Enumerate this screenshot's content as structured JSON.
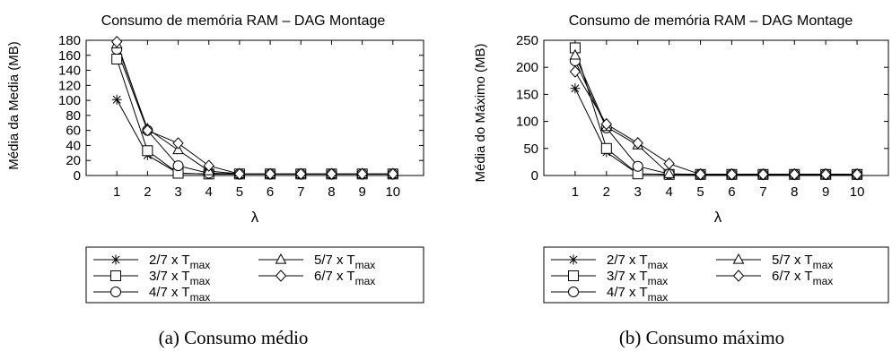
{
  "chart_data": [
    {
      "type": "line",
      "title": "Consumo de memória RAM – DAG Montage",
      "xlabel": "λ",
      "ylabel": "Média da Media (MB)",
      "caption": "(a) Consumo médio",
      "x": [
        1,
        2,
        3,
        4,
        5,
        6,
        7,
        8,
        9,
        10
      ],
      "xlim": [
        0,
        11
      ],
      "ylim": [
        0,
        180
      ],
      "yticks": [
        0,
        20,
        40,
        60,
        80,
        100,
        120,
        140,
        160,
        180
      ],
      "grid": false,
      "legend_position": "below",
      "series": [
        {
          "name": "2/7 x T",
          "sub": "max",
          "marker": "star",
          "values": [
            101,
            27,
            3,
            2,
            2,
            2,
            2,
            2,
            2,
            2
          ]
        },
        {
          "name": "3/7 x T",
          "sub": "max",
          "marker": "square",
          "values": [
            155,
            33,
            3,
            2,
            2,
            2,
            2,
            2,
            2,
            2
          ]
        },
        {
          "name": "4/7 x T",
          "sub": "max",
          "marker": "circle",
          "values": [
            168,
            60,
            13,
            3,
            2,
            2,
            2,
            2,
            2,
            2
          ]
        },
        {
          "name": "5/7 x T",
          "sub": "max",
          "marker": "triangle",
          "values": [
            175,
            62,
            34,
            6,
            2,
            2,
            2,
            2,
            2,
            2
          ]
        },
        {
          "name": "6/7 x T",
          "sub": "max",
          "marker": "diamond",
          "values": [
            178,
            60,
            43,
            13,
            2,
            2,
            2,
            2,
            2,
            2
          ]
        }
      ]
    },
    {
      "type": "line",
      "title": "Consumo de memória RAM – DAG Montage",
      "xlabel": "λ",
      "ylabel": "Média do Máximo (MB)",
      "caption": "(b) Consumo máximo",
      "x": [
        1,
        2,
        3,
        4,
        5,
        6,
        7,
        8,
        9,
        10
      ],
      "xlim": [
        0,
        11
      ],
      "ylim": [
        0,
        250
      ],
      "yticks": [
        0,
        50,
        100,
        150,
        200,
        250
      ],
      "grid": false,
      "legend_position": "below",
      "series": [
        {
          "name": "2/7 x T",
          "sub": "max",
          "marker": "star",
          "values": [
            161,
            43,
            3,
            2,
            2,
            2,
            2,
            2,
            2,
            2
          ]
        },
        {
          "name": "3/7 x T",
          "sub": "max",
          "marker": "square",
          "values": [
            236,
            50,
            3,
            2,
            2,
            2,
            2,
            2,
            2,
            2
          ]
        },
        {
          "name": "4/7 x T",
          "sub": "max",
          "marker": "circle",
          "values": [
            212,
            88,
            17,
            3,
            2,
            2,
            2,
            2,
            2,
            2
          ]
        },
        {
          "name": "5/7 x T",
          "sub": "max",
          "marker": "triangle",
          "values": [
            222,
            90,
            56,
            3,
            2,
            2,
            2,
            2,
            2,
            2
          ]
        },
        {
          "name": "6/7 x T",
          "sub": "max",
          "marker": "diamond",
          "values": [
            192,
            95,
            60,
            22,
            2,
            2,
            2,
            2,
            2,
            2
          ]
        }
      ]
    }
  ]
}
